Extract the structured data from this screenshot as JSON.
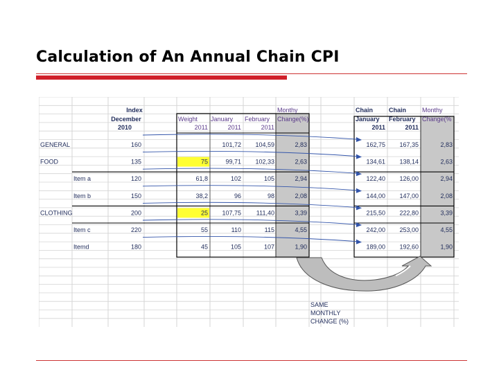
{
  "title": "Calculation of An Annual Chain CPI",
  "headers": {
    "index_l1": "Index",
    "index_l2": "December",
    "index_l3": "2010",
    "weight_l1": "Weight",
    "weight_l2": "2011",
    "jan_l1": "January",
    "jan_l2": "2011",
    "feb_l1": "February",
    "feb_l2": "2011",
    "mc_l1": "Monthy",
    "mc_l2": "Change(%)",
    "chain_l1": "Chain",
    "chain_l2": "January",
    "chain_l3": "2011",
    "chain2_l1": "Chain",
    "chain2_l2": "February",
    "chain2_l3": "2011",
    "mc2_l1": "Monthy",
    "mc2_l2": "Change(%"
  },
  "rows": [
    {
      "label": "GENERAL",
      "indent": false,
      "index": "160",
      "weight": "",
      "jan": "101,72",
      "feb": "104,59",
      "mc": "2,83",
      "cjan": "162,75",
      "cfeb": "167,35",
      "cmc": "2,83",
      "highlight": false
    },
    {
      "label": "FOOD",
      "indent": false,
      "index": "135",
      "weight": "75",
      "jan": "99,71",
      "feb": "102,33",
      "mc": "2,63",
      "cjan": "134,61",
      "cfeb": "138,14",
      "cmc": "2,63",
      "highlight": true
    },
    {
      "label": "Item a",
      "indent": true,
      "index": "120",
      "weight": "61,8",
      "jan": "102",
      "feb": "105",
      "mc": "2,94",
      "cjan": "122,40",
      "cfeb": "126,00",
      "cmc": "2,94",
      "highlight": false
    },
    {
      "label": "Item b",
      "indent": true,
      "index": "150",
      "weight": "38,2",
      "jan": "96",
      "feb": "98",
      "mc": "2,08",
      "cjan": "144,00",
      "cfeb": "147,00",
      "cmc": "2,08",
      "highlight": false
    },
    {
      "label": "CLOTHING",
      "indent": false,
      "index": "200",
      "weight": "25",
      "jan": "107,75",
      "feb": "111,40",
      "mc": "3,39",
      "cjan": "215,50",
      "cfeb": "222,80",
      "cmc": "3,39",
      "highlight": true
    },
    {
      "label": "Item c",
      "indent": true,
      "index": "220",
      "weight": "55",
      "jan": "110",
      "feb": "115",
      "mc": "4,55",
      "cjan": "242,00",
      "cfeb": "253,00",
      "cmc": "4,55",
      "highlight": false
    },
    {
      "label": "Itemd",
      "indent": true,
      "index": "180",
      "weight": "45",
      "jan": "105",
      "feb": "107",
      "mc": "1,90",
      "cjan": "189,00",
      "cfeb": "192,60",
      "cmc": "1,90",
      "highlight": false
    }
  ],
  "note": {
    "l1": "SAME",
    "l2": "MONTHLY",
    "l3": "CHANGE (%)"
  },
  "colors": {
    "grid": "#d4d4d4",
    "shade": "#c8c8c8",
    "highlight": "#ffff33",
    "arrow": "#3355aa",
    "border": "#000000"
  }
}
